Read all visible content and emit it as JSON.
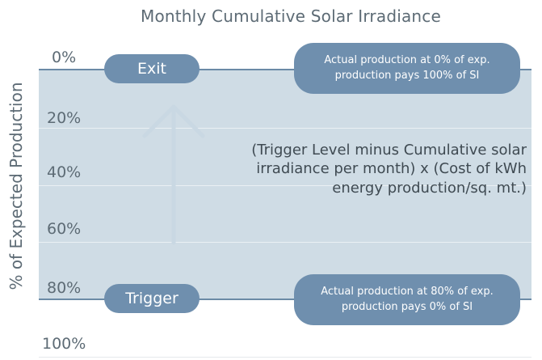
{
  "title": "Monthly Cumulative Solar Irradiance",
  "y_axis_label": "% of Expected Production",
  "tick_labels": [
    "0%",
    "20%",
    "40%",
    "60%",
    "80%",
    "100%"
  ],
  "exit_label": "Exit",
  "trigger_label": "Trigger",
  "exit_note": "Actual production at 0% of exp. production pays 100% of SI",
  "trigger_note": "Actual production at 80% of exp. production pays 0% of SI",
  "formula": "(Trigger Level minus Cumulative solar irradiance per month) x (Cost of kWh energy production/sq. mt.)",
  "colors": {
    "band": "#cfdce5",
    "pill": "#6f8fae",
    "edge_line": "#6b8aa6",
    "arrow": "#c9d8e3"
  },
  "icons": {
    "arrow": "up-arrow-icon"
  }
}
